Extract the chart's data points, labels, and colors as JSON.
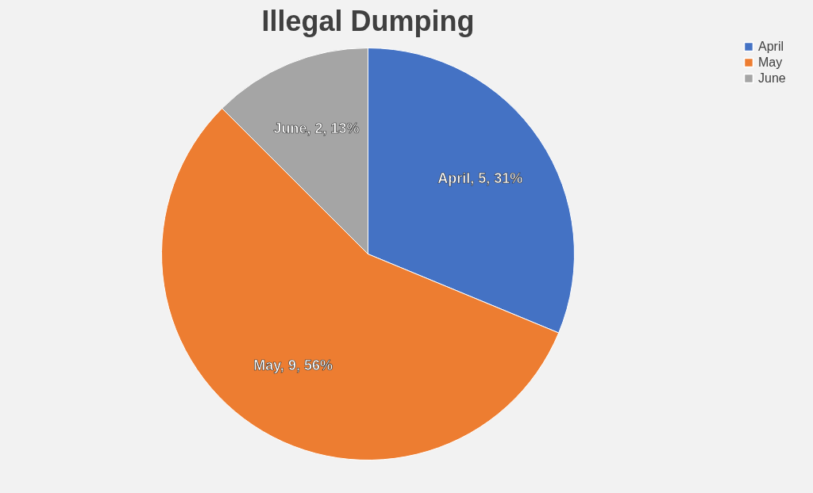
{
  "chart_data": {
    "type": "pie",
    "title": "Illegal Dumping",
    "categories": [
      "April",
      "May",
      "June"
    ],
    "values": [
      5,
      9,
      2
    ],
    "colors": [
      "#4472c4",
      "#ed7d31",
      "#a5a5a5"
    ],
    "value_labels": [
      "April, 5, 31%",
      "May, 9, 56%",
      "June, 2, 13%"
    ],
    "legend": "right"
  }
}
